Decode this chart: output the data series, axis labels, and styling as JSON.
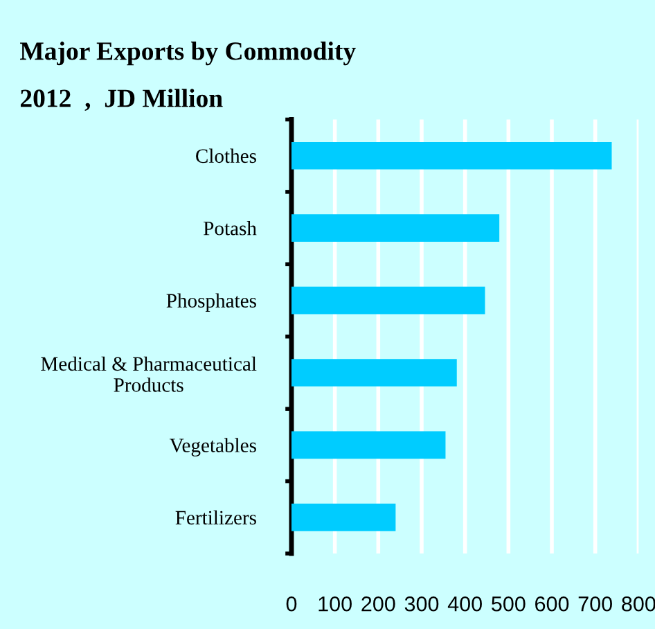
{
  "chart_data": {
    "type": "bar",
    "orientation": "horizontal",
    "title": "Major Exports by Commodity",
    "subtitle": "2012  ,  JD Million",
    "categories": [
      "Clothes",
      "Potash",
      "Phosphates",
      "Medical & Pharmaceutical\nProducts",
      "Vegetables",
      "Fertilizers"
    ],
    "values": [
      738,
      479,
      446,
      381,
      355,
      240
    ],
    "color": "#00ccff",
    "xlim": [
      0,
      800
    ],
    "xticks": [
      0,
      100,
      200,
      300,
      400,
      500,
      600,
      700,
      800
    ],
    "grid": "x"
  }
}
